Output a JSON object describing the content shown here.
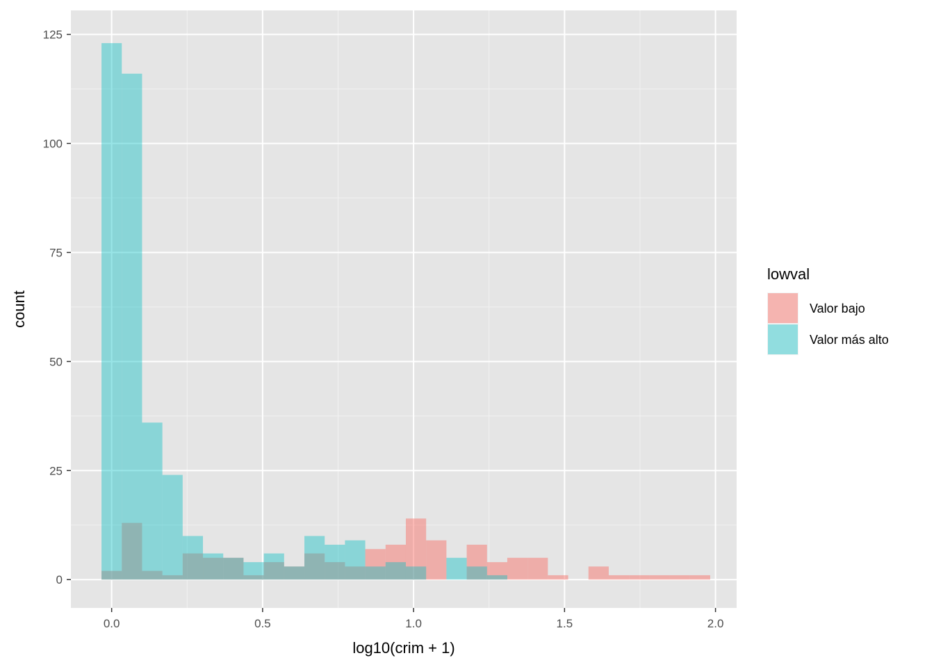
{
  "chart_data": {
    "type": "bar",
    "subtype": "overlapping-histogram",
    "title": "",
    "xlabel": "log10(crim + 1)",
    "ylabel": "count",
    "xlim": [
      -0.135,
      2.07
    ],
    "ylim": [
      -6.5,
      130.5
    ],
    "x_ticks": [
      0.0,
      0.5,
      1.0,
      1.5,
      2.0
    ],
    "x_tick_labels": [
      "0.0",
      "0.5",
      "1.0",
      "1.5",
      "2.0"
    ],
    "y_ticks": [
      0,
      25,
      50,
      75,
      100,
      125
    ],
    "y_tick_labels": [
      "0",
      "25",
      "50",
      "75",
      "100",
      "125"
    ],
    "grid": true,
    "background": "#e5e5e5",
    "bin_width": 0.0672,
    "bin_start": -0.0336,
    "legend": {
      "title": "lowval",
      "placement": "right"
    },
    "series": [
      {
        "name": "Valor bajo",
        "color": "#F8766D",
        "opacity": 0.5,
        "values": [
          2,
          13,
          2,
          1,
          6,
          5,
          5,
          1,
          4,
          3,
          6,
          4,
          3,
          7,
          8,
          14,
          9,
          0,
          8,
          4,
          5,
          5,
          1,
          0,
          3,
          1,
          1,
          1,
          1,
          1
        ]
      },
      {
        "name": "Valor más alto",
        "color": "#00BFC4",
        "opacity": 0.4,
        "values": [
          123,
          116,
          36,
          24,
          10,
          6,
          5,
          4,
          6,
          3,
          10,
          8,
          9,
          3,
          4,
          3,
          0,
          5,
          3,
          1,
          0,
          0,
          0,
          0,
          0,
          0,
          0,
          0,
          0,
          0
        ]
      }
    ]
  }
}
